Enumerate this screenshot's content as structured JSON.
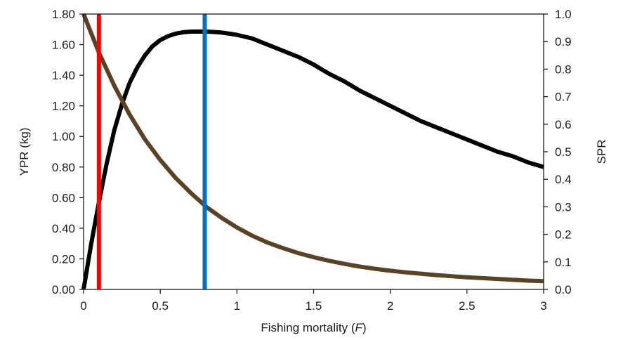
{
  "chart_data": {
    "type": "line",
    "xlabel": "Fishing mortality",
    "xlabel_var": "F",
    "ylabel": "YPR (kg)",
    "y2label": "SPR",
    "xlim": [
      0,
      3
    ],
    "ylim": [
      0,
      1.8
    ],
    "y2lim": [
      0,
      1.0
    ],
    "xticks": [
      "0",
      "0.5",
      "1",
      "1.5",
      "2",
      "2.5",
      "3"
    ],
    "yticks": [
      "0.00",
      "0.20",
      "0.40",
      "0.60",
      "0.80",
      "1.00",
      "1.20",
      "1.40",
      "1.60",
      "1.80"
    ],
    "y2ticks": [
      "0.0",
      "0.1",
      "0.2",
      "0.3",
      "0.4",
      "0.5",
      "0.6",
      "0.7",
      "0.8",
      "0.9",
      "1.0"
    ],
    "grid": false,
    "series": [
      {
        "axis": "left",
        "color": "#000000",
        "x": [
          0,
          0.05,
          0.1,
          0.15,
          0.2,
          0.25,
          0.3,
          0.35,
          0.4,
          0.45,
          0.5,
          0.55,
          0.6,
          0.65,
          0.7,
          0.75,
          0.8,
          0.85,
          0.9,
          0.95,
          1.0,
          1.1,
          1.2,
          1.3,
          1.4,
          1.5,
          1.6,
          1.7,
          1.8,
          1.9,
          2.0,
          2.1,
          2.2,
          2.3,
          2.4,
          2.5,
          2.6,
          2.7,
          2.8,
          2.9,
          3.0
        ],
        "y": [
          0.0,
          0.3,
          0.57,
          0.82,
          1.04,
          1.21,
          1.35,
          1.45,
          1.53,
          1.59,
          1.63,
          1.655,
          1.672,
          1.681,
          1.685,
          1.686,
          1.685,
          1.683,
          1.679,
          1.672,
          1.664,
          1.64,
          1.6,
          1.56,
          1.52,
          1.47,
          1.41,
          1.36,
          1.3,
          1.25,
          1.2,
          1.15,
          1.1,
          1.06,
          1.02,
          0.98,
          0.94,
          0.9,
          0.87,
          0.83,
          0.8
        ]
      },
      {
        "axis": "right",
        "color": "#5a4324",
        "x": [
          0,
          0.1,
          0.2,
          0.3,
          0.4,
          0.5,
          0.6,
          0.7,
          0.8,
          0.9,
          1.0,
          1.1,
          1.2,
          1.3,
          1.4,
          1.5,
          1.6,
          1.7,
          1.8,
          1.9,
          2.0,
          2.1,
          2.2,
          2.3,
          2.4,
          2.5,
          2.6,
          2.7,
          2.8,
          2.9,
          3.0
        ],
        "y": [
          1.0,
          0.86,
          0.74,
          0.635,
          0.545,
          0.47,
          0.405,
          0.35,
          0.3,
          0.26,
          0.225,
          0.195,
          0.17,
          0.15,
          0.132,
          0.117,
          0.104,
          0.093,
          0.083,
          0.075,
          0.068,
          0.062,
          0.057,
          0.052,
          0.048,
          0.044,
          0.041,
          0.038,
          0.035,
          0.032,
          0.03
        ]
      }
    ],
    "reference_lines": [
      {
        "x": 0.1,
        "color": "#ff0000"
      },
      {
        "x": 0.79,
        "color": "#0070c0"
      }
    ]
  }
}
